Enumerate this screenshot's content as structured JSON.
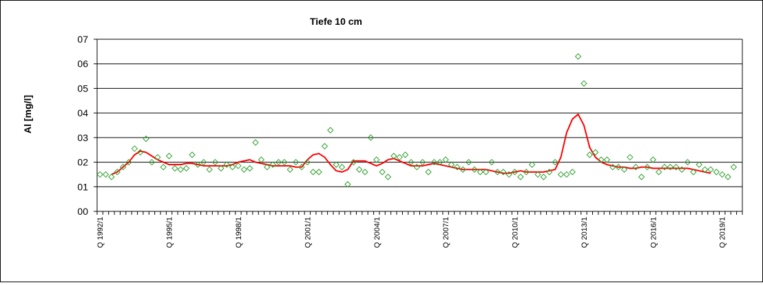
{
  "chart_data": {
    "type": "scatter",
    "title": "Tiefe  10 cm",
    "ylabel": "Al [mg/l]",
    "xlabel": "",
    "ylim": [
      0,
      0.7
    ],
    "ytick_labels": [
      "00",
      "01",
      "02",
      "03",
      "04",
      "05",
      "06",
      "07"
    ],
    "xtick_labels": [
      "Q 1992/1",
      "Q 1995/1",
      "Q 1998/1",
      "Q 2001/1",
      "Q 2004/1",
      "Q 2007/1",
      "Q 2010/1",
      "Q 2013/1",
      "Q 2016/1",
      "Q 2019/1"
    ],
    "x_start": "Q 1992/1",
    "quarters_count": 112,
    "grid": "horizontal",
    "legend": "none",
    "colors": {
      "points": "#2ca02c",
      "trend": "#ff0000",
      "grid": "#000000"
    },
    "series": [
      {
        "type": "scatter",
        "marker": "diamond",
        "values": [
          0.15,
          0.15,
          0.14,
          0.16,
          0.18,
          0.2,
          0.255,
          0.24,
          0.295,
          0.2,
          0.22,
          0.18,
          0.225,
          0.175,
          0.17,
          0.175,
          0.23,
          0.19,
          0.2,
          0.17,
          0.2,
          0.175,
          0.19,
          0.18,
          0.185,
          0.17,
          0.175,
          0.28,
          0.21,
          0.18,
          0.19,
          0.2,
          0.2,
          0.17,
          0.2,
          0.18,
          0.2,
          0.16,
          0.16,
          0.265,
          0.33,
          0.19,
          0.18,
          0.11,
          0.2,
          0.17,
          0.16,
          0.3,
          0.21,
          0.16,
          0.14,
          0.225,
          0.22,
          0.23,
          0.2,
          0.18,
          0.2,
          0.16,
          0.2,
          0.2,
          0.21,
          0.19,
          0.18,
          0.17,
          0.2,
          0.17,
          0.16,
          0.16,
          0.2,
          0.16,
          0.16,
          0.15,
          0.16,
          0.14,
          0.16,
          0.19,
          0.15,
          0.14,
          0.16,
          0.2,
          0.15,
          0.15,
          0.16,
          0.63,
          0.52,
          0.23,
          0.24,
          0.21,
          0.21,
          0.18,
          0.18,
          0.17,
          0.22,
          0.18,
          0.14,
          0.18,
          0.21,
          0.16,
          0.18,
          0.18,
          0.18,
          0.17,
          0.2,
          0.16,
          0.19,
          0.17,
          0.17,
          0.16,
          0.15,
          0.14,
          0.18
        ]
      },
      {
        "type": "line",
        "start_index": 2,
        "values": [
          0.15,
          0.16,
          0.18,
          0.2,
          0.23,
          0.245,
          0.24,
          0.225,
          0.21,
          0.2,
          0.19,
          0.19,
          0.19,
          0.195,
          0.195,
          0.19,
          0.185,
          0.185,
          0.185,
          0.185,
          0.185,
          0.19,
          0.2,
          0.205,
          0.21,
          0.2,
          0.195,
          0.19,
          0.185,
          0.185,
          0.185,
          0.185,
          0.18,
          0.18,
          0.21,
          0.23,
          0.235,
          0.22,
          0.19,
          0.165,
          0.16,
          0.17,
          0.205,
          0.205,
          0.205,
          0.195,
          0.185,
          0.195,
          0.21,
          0.215,
          0.205,
          0.195,
          0.185,
          0.185,
          0.185,
          0.19,
          0.195,
          0.19,
          0.185,
          0.18,
          0.175,
          0.17,
          0.17,
          0.17,
          0.17,
          0.17,
          0.165,
          0.16,
          0.155,
          0.155,
          0.16,
          0.165,
          0.16,
          0.16,
          0.16,
          0.16,
          0.165,
          0.17,
          0.22,
          0.32,
          0.375,
          0.395,
          0.35,
          0.26,
          0.22,
          0.2,
          0.19,
          0.185,
          0.18,
          0.18,
          0.175,
          0.175,
          0.18,
          0.18,
          0.175,
          0.175,
          0.175,
          0.175,
          0.175,
          0.175,
          0.175,
          0.17,
          0.165,
          0.16,
          0.155
        ]
      }
    ]
  }
}
